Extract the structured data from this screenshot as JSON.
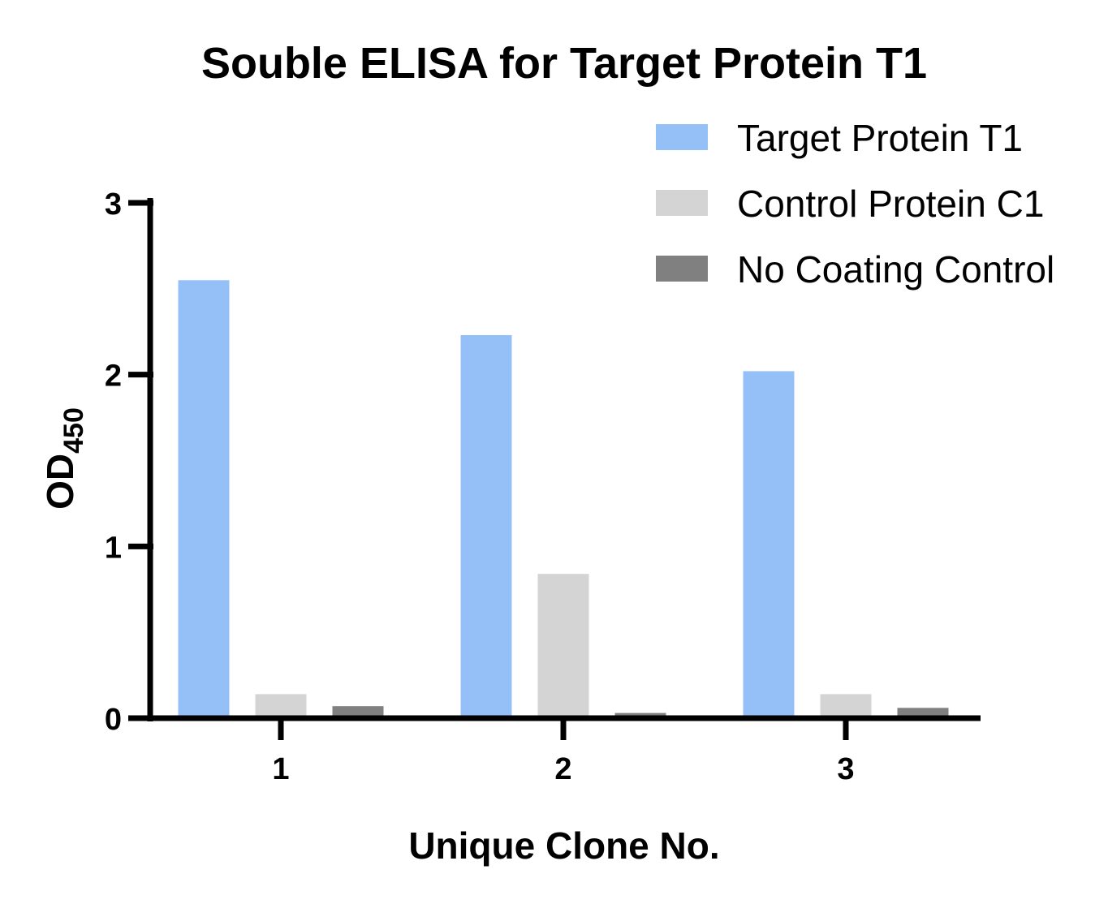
{
  "chart_data": {
    "type": "bar",
    "title": "Souble ELISA for Target Protein T1",
    "xlabel": "Unique Clone No.",
    "ylabel": {
      "main": "OD",
      "subscript": "450"
    },
    "categories": [
      "1",
      "2",
      "3"
    ],
    "series": [
      {
        "name": "Target Protein T1",
        "color": "#94c0f7",
        "values": [
          2.55,
          2.23,
          2.02
        ]
      },
      {
        "name": "Control Protein C1",
        "color": "#d4d4d4",
        "values": [
          0.14,
          0.84,
          0.14
        ]
      },
      {
        "name": "No Coating Control",
        "color": "#808080",
        "values": [
          0.07,
          0.03,
          0.06
        ]
      }
    ],
    "ylim": [
      0,
      3
    ],
    "yticks": [
      "0",
      "1",
      "2",
      "3"
    ],
    "grid": false,
    "legend_position": "top-right"
  }
}
